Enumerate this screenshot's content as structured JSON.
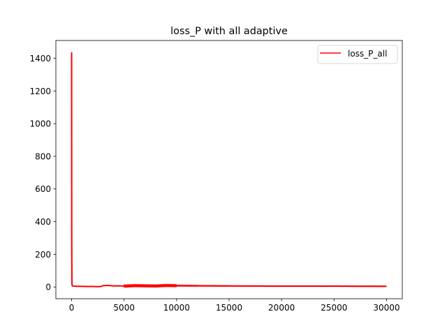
{
  "chart_data": {
    "type": "line",
    "title": "loss_P with all adaptive",
    "xlabel": "",
    "ylabel": "",
    "xlim": [
      -1500,
      31500
    ],
    "ylim": [
      -71.9,
      1508.9
    ],
    "xticks": [
      0,
      5000,
      10000,
      15000,
      20000,
      25000,
      30000
    ],
    "xtick_labels": [
      "0",
      "5000",
      "10000",
      "15000",
      "20000",
      "25000",
      "30000"
    ],
    "yticks": [
      0,
      200,
      400,
      600,
      800,
      1000,
      1200,
      1400
    ],
    "ytick_labels": [
      "0",
      "200",
      "400",
      "600",
      "800",
      "1000",
      "1200",
      "1400"
    ],
    "grid": false,
    "legend_position": "upper right",
    "series": [
      {
        "name": "loss_P_all",
        "color": "#ff0000",
        "x": [
          0,
          10,
          30,
          60,
          100,
          200,
          400,
          800,
          1500,
          2000,
          2500,
          2800,
          3000,
          3500,
          4000,
          4500,
          5000,
          6000,
          7000,
          8000,
          9000,
          10000,
          12000,
          15000,
          20000,
          25000,
          30000
        ],
        "y": [
          1437,
          300,
          20,
          8,
          6,
          5,
          4,
          4,
          3,
          3,
          2,
          3,
          8,
          9,
          6,
          7,
          5,
          8,
          7,
          6,
          9,
          8,
          7,
          6,
          5,
          5,
          4
        ]
      }
    ]
  }
}
